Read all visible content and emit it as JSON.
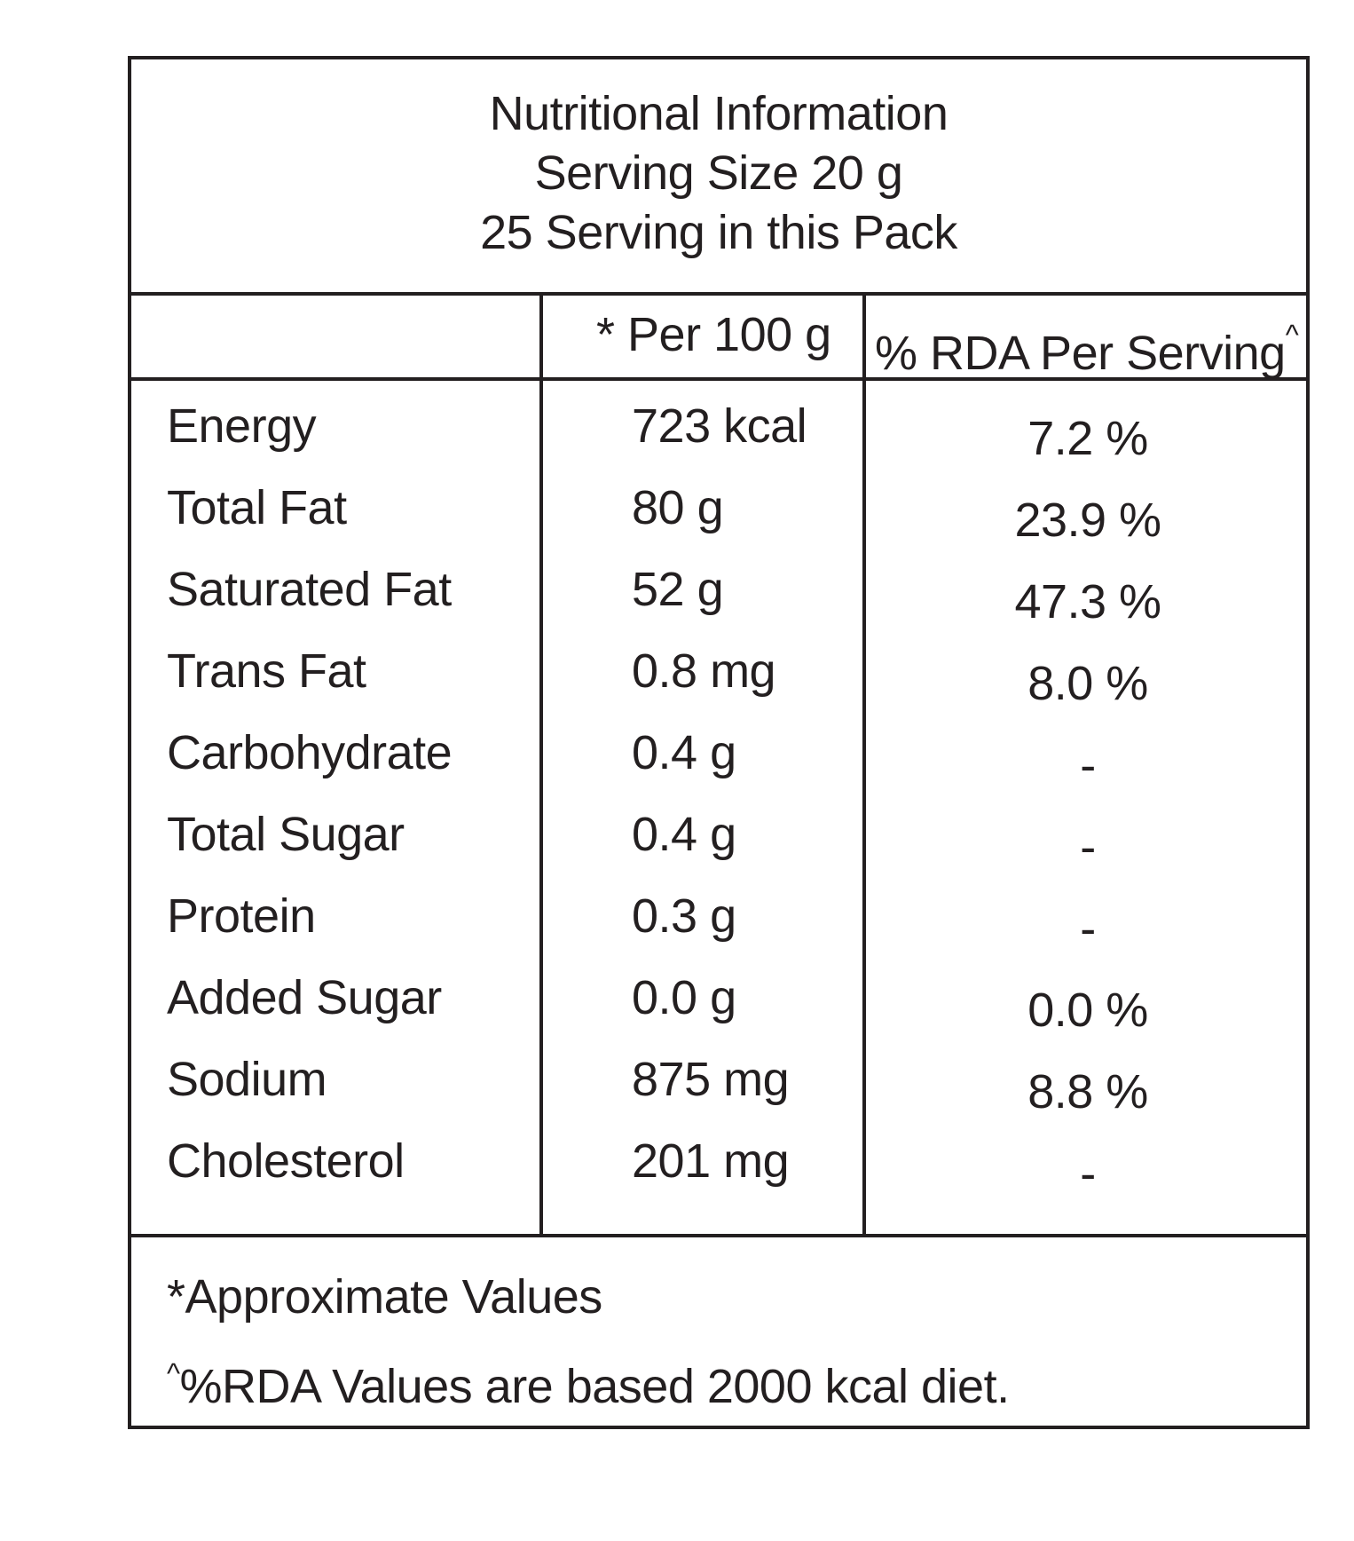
{
  "title": {
    "line1": "Nutritional Information",
    "line2": "Serving Size 20 g",
    "line3": "25 Serving in this Pack"
  },
  "header": {
    "per100": "* Per 100 g",
    "rda": "% RDA Per Serving",
    "rda_marker": "^"
  },
  "rows": [
    {
      "name": "Energy",
      "value": "723 kcal",
      "rda": "7.2 %"
    },
    {
      "name": "Total Fat",
      "value": "80 g",
      "rda": "23.9 %"
    },
    {
      "name": "Saturated Fat",
      "value": "52 g",
      "rda": "47.3 %"
    },
    {
      "name": "Trans Fat",
      "value": "0.8 mg",
      "rda": "8.0 %"
    },
    {
      "name": "Carbohydrate",
      "value": "0.4 g",
      "rda": "-"
    },
    {
      "name": "Total Sugar",
      "value": "0.4 g",
      "rda": "-"
    },
    {
      "name": "Protein",
      "value": "0.3 g",
      "rda": "-"
    },
    {
      "name": "Added Sugar",
      "value": "0.0 g",
      "rda": "0.0 %"
    },
    {
      "name": "Sodium",
      "value": "875 mg",
      "rda": "8.8 %"
    },
    {
      "name": "Cholesterol",
      "value": "201 mg",
      "rda": "-"
    }
  ],
  "footer": {
    "note1": "*Approximate Values",
    "note2_marker": "^",
    "note2": "%RDA Values are based 2000 kcal diet."
  }
}
